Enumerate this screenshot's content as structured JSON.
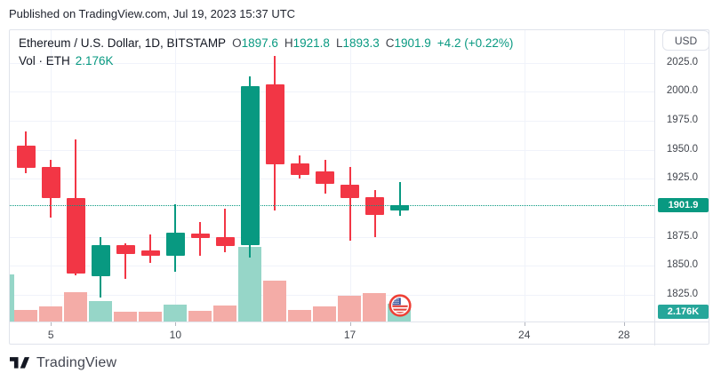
{
  "published": "Published on TradingView.com, Jul 19, 2023 15:37 UTC",
  "currency_button": "USD",
  "legend": {
    "title": "Ethereum / U.S. Dollar, 1D, BITSTAMP",
    "ohlc": [
      {
        "k": "O",
        "v": "1897.6"
      },
      {
        "k": "H",
        "v": "1921.8"
      },
      {
        "k": "L",
        "v": "1893.3"
      },
      {
        "k": "C",
        "v": "1901.9"
      }
    ],
    "change": "+4.2 (+0.22%)",
    "vol_label": "Vol · ETH",
    "vol_value": "2.176K"
  },
  "price_scale": {
    "ticks": [
      "2025.0",
      "2000.0",
      "1975.0",
      "1950.0",
      "1925.0",
      "1875.0",
      "1850.0",
      "1825.0"
    ],
    "price_badge": "1901.9",
    "vol_badge": "2.176K"
  },
  "time_scale": {
    "labels": [
      {
        "text": "5",
        "day": 5
      },
      {
        "text": "10",
        "day": 10
      },
      {
        "text": "17",
        "day": 17
      },
      {
        "text": "24",
        "day": 24
      },
      {
        "text": "28",
        "day": 28
      }
    ]
  },
  "footer": {
    "brand": "TradingView"
  },
  "colors": {
    "up": "#089981",
    "down": "#f23645",
    "vol_up": "#96d6c8",
    "vol_down": "#f4aca7",
    "price_line": "#089981",
    "price_badge_bg": "#089981",
    "vol_badge_bg": "#26a69a",
    "grid": "#f0f3fa",
    "border": "#e0e3eb",
    "text_dark": "#131722",
    "axis_text": "#42464e"
  },
  "chart_data": {
    "type": "candlestick+volume",
    "title": "Ethereum / U.S. Dollar, 1D, BITSTAMP",
    "x_unit": "day of July 2023",
    "y_axis_label": "USD",
    "x_range": [
      3.35,
      29.22
    ],
    "y_range": [
      1802,
      2053
    ],
    "y_ticks": [
      2025,
      2000,
      1975,
      1950,
      1925,
      1875,
      1850,
      1825
    ],
    "x_gridline_days": [
      5,
      10,
      17,
      24,
      28
    ],
    "last_price": 1901.9,
    "last_volume_k": 2.176,
    "flag_day": 19,
    "partial_left_volume_k": 5.8,
    "candles": [
      {
        "day": 4,
        "o": 1953.5,
        "h": 1966.0,
        "l": 1929.5,
        "c": 1934.5,
        "vol_k": 1.4
      },
      {
        "day": 5,
        "o": 1935.5,
        "h": 1941.5,
        "l": 1891.5,
        "c": 1908.5,
        "vol_k": 1.8
      },
      {
        "day": 6,
        "o": 1908.0,
        "h": 1958.5,
        "l": 1842.0,
        "c": 1843.5,
        "vol_k": 3.6
      },
      {
        "day": 7,
        "o": 1841.0,
        "h": 1874.5,
        "l": 1823.0,
        "c": 1868.0,
        "vol_k": 2.5
      },
      {
        "day": 8,
        "o": 1867.5,
        "h": 1869.5,
        "l": 1838.5,
        "c": 1860.5,
        "vol_k": 1.2
      },
      {
        "day": 9,
        "o": 1863.0,
        "h": 1877.0,
        "l": 1852.5,
        "c": 1858.5,
        "vol_k": 1.2
      },
      {
        "day": 10,
        "o": 1859.0,
        "h": 1903.0,
        "l": 1844.5,
        "c": 1878.5,
        "vol_k": 2.1
      },
      {
        "day": 11,
        "o": 1877.5,
        "h": 1888.0,
        "l": 1859.0,
        "c": 1874.0,
        "vol_k": 1.3
      },
      {
        "day": 12,
        "o": 1875.0,
        "h": 1899.0,
        "l": 1861.5,
        "c": 1867.0,
        "vol_k": 2.0
      },
      {
        "day": 13,
        "o": 1867.5,
        "h": 2013.5,
        "l": 1857.0,
        "c": 2004.5,
        "vol_k": 9.1
      },
      {
        "day": 14,
        "o": 2006.0,
        "h": 2030.5,
        "l": 1897.5,
        "c": 1937.5,
        "vol_k": 5.0
      },
      {
        "day": 15,
        "o": 1938.0,
        "h": 1945.0,
        "l": 1925.5,
        "c": 1928.5,
        "vol_k": 1.4
      },
      {
        "day": 16,
        "o": 1931.5,
        "h": 1941.5,
        "l": 1912.0,
        "c": 1920.5,
        "vol_k": 1.8
      },
      {
        "day": 17,
        "o": 1920.0,
        "h": 1935.0,
        "l": 1872.0,
        "c": 1908.5,
        "vol_k": 3.2
      },
      {
        "day": 18,
        "o": 1909.5,
        "h": 1915.5,
        "l": 1874.5,
        "c": 1894.0,
        "vol_k": 3.5
      },
      {
        "day": 19,
        "o": 1897.6,
        "h": 1921.8,
        "l": 1893.3,
        "c": 1901.9,
        "vol_k": 2.176
      }
    ]
  }
}
